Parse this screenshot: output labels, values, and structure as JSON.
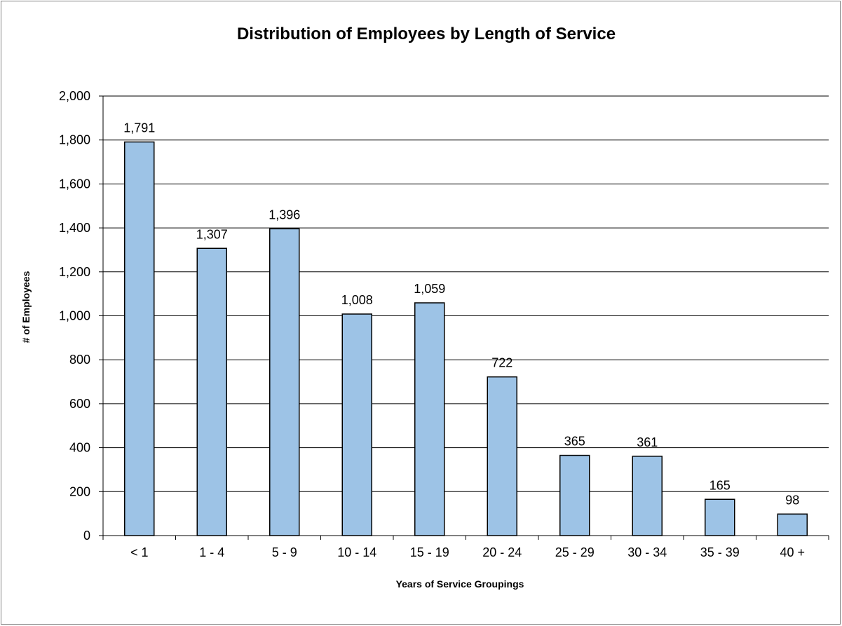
{
  "chart_data": {
    "type": "bar",
    "title": "Distribution of Employees by Length of Service",
    "xlabel": "Years of Service Groupings",
    "ylabel": "# of Employees",
    "categories": [
      "< 1",
      "1 - 4",
      "5 - 9",
      "10 - 14",
      "15 - 19",
      "20 - 24",
      "25 - 29",
      "30 - 34",
      "35 - 39",
      "40 +"
    ],
    "values": [
      1791,
      1307,
      1396,
      1008,
      1059,
      722,
      365,
      361,
      165,
      98
    ],
    "data_labels": [
      "1,791",
      "1,307",
      "1,396",
      "1,008",
      "1,059",
      "722",
      "365",
      "361",
      "165",
      "98"
    ],
    "yticks": [
      "0",
      "200",
      "400",
      "600",
      "800",
      "1,000",
      "1,200",
      "1,400",
      "1,600",
      "1,800",
      "2,000"
    ],
    "ylim": [
      0,
      2000
    ],
    "grid": true,
    "legend": "none",
    "bar_color": "#9dc3e6"
  }
}
